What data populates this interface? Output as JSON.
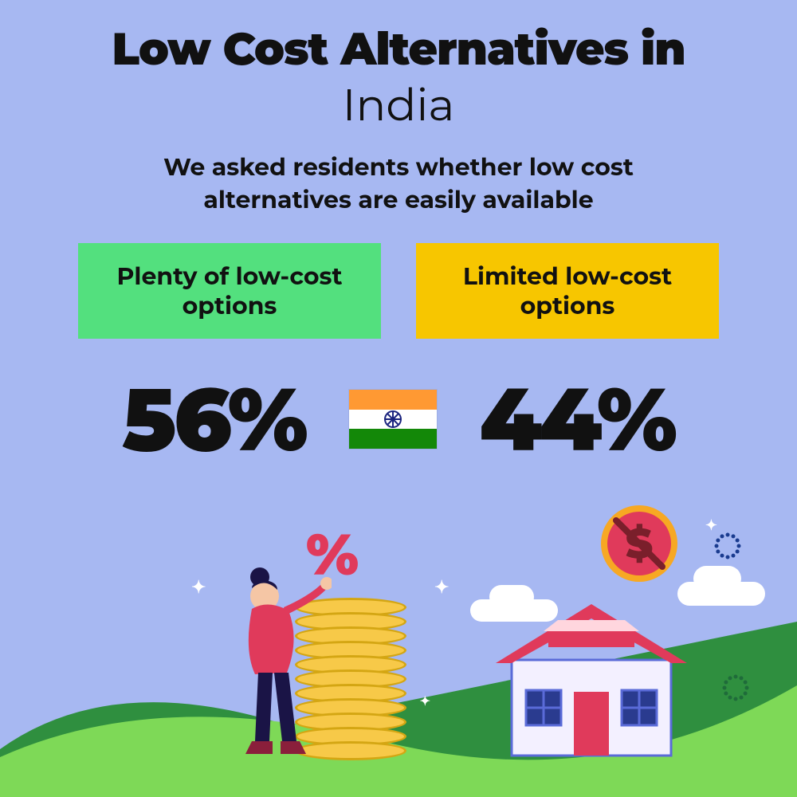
{
  "background_color": "#a7b8f2",
  "text_color": "#111111",
  "title": {
    "line1": "Low Cost Alternatives in",
    "line2": "India"
  },
  "subheading": "We asked residents whether low cost alternatives are easily available",
  "boxes": {
    "left": {
      "label": "Plenty of low-cost options",
      "bg": "#53e07e",
      "text": "#111111"
    },
    "right": {
      "label": "Limited low-cost options",
      "bg": "#f7c600",
      "text": "#111111"
    }
  },
  "stats": {
    "left": {
      "value": "56%"
    },
    "right": {
      "value": "44%"
    }
  },
  "flag": {
    "top_color": "#ff9933",
    "mid_color": "#ffffff",
    "bot_color": "#138808",
    "chakra_color": "#1a237e"
  },
  "illustration": {
    "hill_dark": "#2f8f3f",
    "hill_light": "#7ed957",
    "percent_color": "#e03a5b",
    "coin_fill": "#f7c948",
    "coin_stroke": "#d4a613",
    "house_wall": "#f3f0ff",
    "house_roof": "#e03a5b",
    "house_roof_top": "#ffd6de",
    "house_window": "#2a3b8f",
    "house_frame": "#5a6bd8",
    "dollar_bg": "#f7a823",
    "dollar_inner": "#e03a5b",
    "dollar_text": "#7a1f2b",
    "cloud": "#ffffff",
    "sparkle": "#ffffff",
    "dot_ring1": "#1a3b8f",
    "dot_ring2": "#1f6b3a",
    "person_top": "#e03a5b",
    "person_pants": "#1a1446",
    "person_boots": "#8a1f3b",
    "person_skin": "#f5c6a5",
    "person_hair": "#1a1446"
  }
}
